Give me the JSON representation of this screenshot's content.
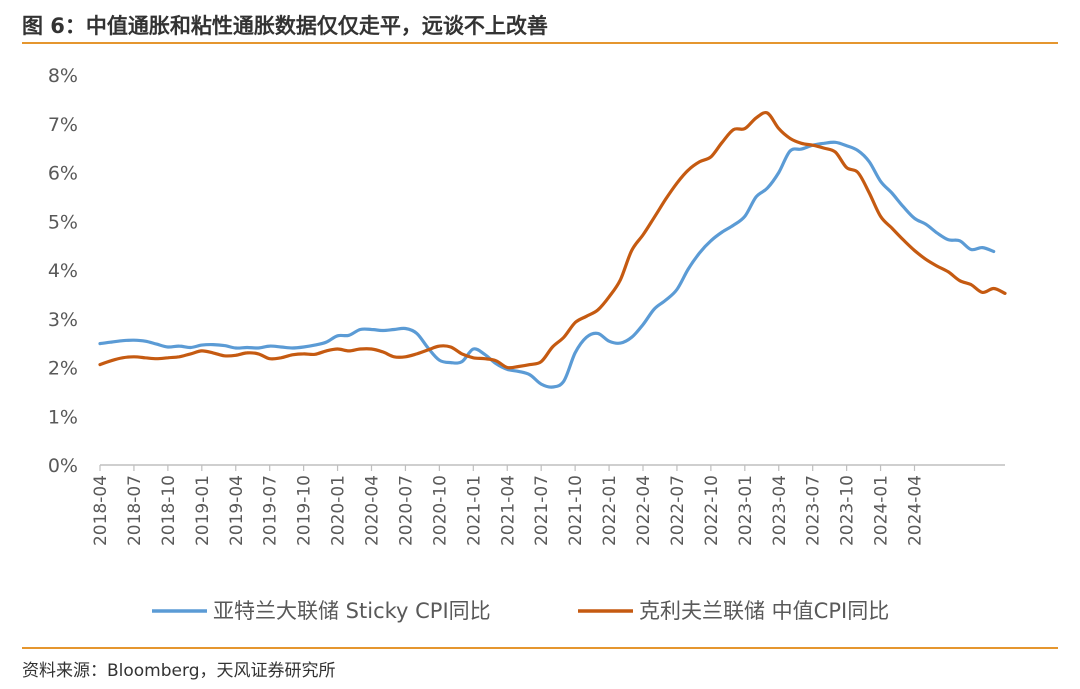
{
  "header": {
    "title": "图 6：中值通胀和粘性通胀数据仅仅走平，远谈不上改善"
  },
  "footer": {
    "source": "资料来源：Bloomberg，天风证券研究所"
  },
  "colors": {
    "accent": "#e5962f",
    "series_blue": "#5b9bd5",
    "series_orange": "#c55a11"
  },
  "chart_data": {
    "type": "line",
    "title": "",
    "xlabel": "",
    "ylabel": "",
    "ylim": [
      0,
      8
    ],
    "y_ticks": [
      "0%",
      "1%",
      "2%",
      "3%",
      "4%",
      "5%",
      "6%",
      "7%",
      "8%"
    ],
    "x_ticks": [
      "2018-04",
      "2018-07",
      "2018-10",
      "2019-01",
      "2019-04",
      "2019-07",
      "2019-10",
      "2020-01",
      "2020-04",
      "2020-07",
      "2020-10",
      "2021-01",
      "2021-04",
      "2021-07",
      "2021-10",
      "2022-01",
      "2022-04",
      "2022-07",
      "2022-10",
      "2023-01",
      "2023-04",
      "2023-07",
      "2023-10",
      "2024-01",
      "2024-04"
    ],
    "grid": false,
    "legend": "bottom",
    "series": [
      {
        "name": "亚特兰大联储 Sticky CPI同比",
        "color": "#5b9bd5",
        "points": [
          [
            "2018-04",
            2.49
          ],
          [
            "2018-05",
            2.52
          ],
          [
            "2018-06",
            2.55
          ],
          [
            "2018-07",
            2.56
          ],
          [
            "2018-08",
            2.54
          ],
          [
            "2018-09",
            2.48
          ],
          [
            "2018-10",
            2.42
          ],
          [
            "2018-11",
            2.44
          ],
          [
            "2018-12",
            2.41
          ],
          [
            "2019-01",
            2.46
          ],
          [
            "2019-02",
            2.47
          ],
          [
            "2019-03",
            2.45
          ],
          [
            "2019-04",
            2.4
          ],
          [
            "2019-05",
            2.41
          ],
          [
            "2019-06",
            2.4
          ],
          [
            "2019-07",
            2.44
          ],
          [
            "2019-08",
            2.42
          ],
          [
            "2019-09",
            2.4
          ],
          [
            "2019-10",
            2.42
          ],
          [
            "2019-11",
            2.46
          ],
          [
            "2019-12",
            2.52
          ],
          [
            "2020-01",
            2.65
          ],
          [
            "2020-02",
            2.66
          ],
          [
            "2020-03",
            2.78
          ],
          [
            "2020-04",
            2.78
          ],
          [
            "2020-05",
            2.76
          ],
          [
            "2020-06",
            2.78
          ],
          [
            "2020-07",
            2.8
          ],
          [
            "2020-08",
            2.7
          ],
          [
            "2020-09",
            2.4
          ],
          [
            "2020-10",
            2.15
          ],
          [
            "2020-11",
            2.1
          ],
          [
            "2020-12",
            2.12
          ],
          [
            "2021-01",
            2.38
          ],
          [
            "2021-02",
            2.27
          ],
          [
            "2021-03",
            2.08
          ],
          [
            "2021-04",
            1.96
          ],
          [
            "2021-05",
            1.92
          ],
          [
            "2021-06",
            1.85
          ],
          [
            "2021-07",
            1.66
          ],
          [
            "2021-08",
            1.6
          ],
          [
            "2021-09",
            1.72
          ],
          [
            "2021-10",
            2.3
          ],
          [
            "2021-11",
            2.62
          ],
          [
            "2021-12",
            2.7
          ],
          [
            "2022-01",
            2.54
          ],
          [
            "2022-02",
            2.5
          ],
          [
            "2022-03",
            2.62
          ],
          [
            "2022-04",
            2.88
          ],
          [
            "2022-05",
            3.2
          ],
          [
            "2022-06",
            3.38
          ],
          [
            "2022-07",
            3.6
          ],
          [
            "2022-08",
            4.02
          ],
          [
            "2022-09",
            4.35
          ],
          [
            "2022-10",
            4.6
          ],
          [
            "2022-11",
            4.78
          ],
          [
            "2022-12",
            4.92
          ],
          [
            "2023-01",
            5.1
          ],
          [
            "2023-02",
            5.5
          ],
          [
            "2023-03",
            5.68
          ],
          [
            "2023-04",
            6.0
          ],
          [
            "2023-05",
            6.44
          ],
          [
            "2023-06",
            6.48
          ],
          [
            "2023-07",
            6.56
          ],
          [
            "2023-08",
            6.6
          ],
          [
            "2023-09",
            6.62
          ],
          [
            "2023-10",
            6.55
          ],
          [
            "2023-11",
            6.45
          ],
          [
            "2023-12",
            6.22
          ],
          [
            "2024-01",
            5.82
          ],
          [
            "2024-02",
            5.58
          ],
          [
            "2024-03",
            5.3
          ],
          [
            "2024-04",
            5.06
          ],
          [
            "2024-05",
            4.94
          ],
          [
            "2024-06",
            4.76
          ],
          [
            "2024-07",
            4.62
          ],
          [
            "2024-08",
            4.6
          ],
          [
            "2024-09",
            4.42
          ],
          [
            "2024-10",
            4.46
          ],
          [
            "2024-11",
            4.38
          ]
        ]
      },
      {
        "name": "克利夫兰联储 中值CPI同比",
        "color": "#c55a11",
        "points": [
          [
            "2018-04",
            2.06
          ],
          [
            "2018-05",
            2.14
          ],
          [
            "2018-06",
            2.2
          ],
          [
            "2018-07",
            2.22
          ],
          [
            "2018-08",
            2.2
          ],
          [
            "2018-09",
            2.18
          ],
          [
            "2018-10",
            2.2
          ],
          [
            "2018-11",
            2.22
          ],
          [
            "2018-12",
            2.28
          ],
          [
            "2019-01",
            2.34
          ],
          [
            "2019-02",
            2.3
          ],
          [
            "2019-03",
            2.24
          ],
          [
            "2019-04",
            2.25
          ],
          [
            "2019-05",
            2.3
          ],
          [
            "2019-06",
            2.28
          ],
          [
            "2019-07",
            2.18
          ],
          [
            "2019-08",
            2.2
          ],
          [
            "2019-09",
            2.26
          ],
          [
            "2019-10",
            2.28
          ],
          [
            "2019-11",
            2.27
          ],
          [
            "2019-12",
            2.34
          ],
          [
            "2020-01",
            2.38
          ],
          [
            "2020-02",
            2.34
          ],
          [
            "2020-03",
            2.38
          ],
          [
            "2020-04",
            2.38
          ],
          [
            "2020-05",
            2.32
          ],
          [
            "2020-06",
            2.22
          ],
          [
            "2020-07",
            2.22
          ],
          [
            "2020-08",
            2.28
          ],
          [
            "2020-09",
            2.36
          ],
          [
            "2020-10",
            2.44
          ],
          [
            "2020-11",
            2.42
          ],
          [
            "2020-12",
            2.28
          ],
          [
            "2021-01",
            2.2
          ],
          [
            "2021-02",
            2.18
          ],
          [
            "2021-03",
            2.14
          ],
          [
            "2021-04",
            2.0
          ],
          [
            "2021-05",
            2.02
          ],
          [
            "2021-06",
            2.06
          ],
          [
            "2021-07",
            2.12
          ],
          [
            "2021-08",
            2.42
          ],
          [
            "2021-09",
            2.62
          ],
          [
            "2021-10",
            2.92
          ],
          [
            "2021-11",
            3.05
          ],
          [
            "2021-12",
            3.18
          ],
          [
            "2022-01",
            3.45
          ],
          [
            "2022-02",
            3.8
          ],
          [
            "2022-03",
            4.4
          ],
          [
            "2022-04",
            4.72
          ],
          [
            "2022-05",
            5.08
          ],
          [
            "2022-06",
            5.45
          ],
          [
            "2022-07",
            5.78
          ],
          [
            "2022-08",
            6.05
          ],
          [
            "2022-09",
            6.22
          ],
          [
            "2022-10",
            6.32
          ],
          [
            "2022-11",
            6.62
          ],
          [
            "2022-12",
            6.88
          ],
          [
            "2023-01",
            6.9
          ],
          [
            "2023-02",
            7.12
          ],
          [
            "2023-03",
            7.22
          ],
          [
            "2023-04",
            6.9
          ],
          [
            "2023-05",
            6.7
          ],
          [
            "2023-06",
            6.6
          ],
          [
            "2023-07",
            6.56
          ],
          [
            "2023-08",
            6.5
          ],
          [
            "2023-09",
            6.42
          ],
          [
            "2023-10",
            6.1
          ],
          [
            "2023-11",
            6.0
          ],
          [
            "2023-12",
            5.58
          ],
          [
            "2024-01",
            5.1
          ],
          [
            "2024-02",
            4.86
          ],
          [
            "2024-03",
            4.62
          ],
          [
            "2024-04",
            4.4
          ],
          [
            "2024-05",
            4.22
          ],
          [
            "2024-06",
            4.08
          ],
          [
            "2024-07",
            3.96
          ],
          [
            "2024-08",
            3.78
          ],
          [
            "2024-09",
            3.7
          ],
          [
            "2024-10",
            3.54
          ],
          [
            "2024-11",
            3.62
          ],
          [
            "2024-12",
            3.52
          ]
        ]
      }
    ]
  }
}
